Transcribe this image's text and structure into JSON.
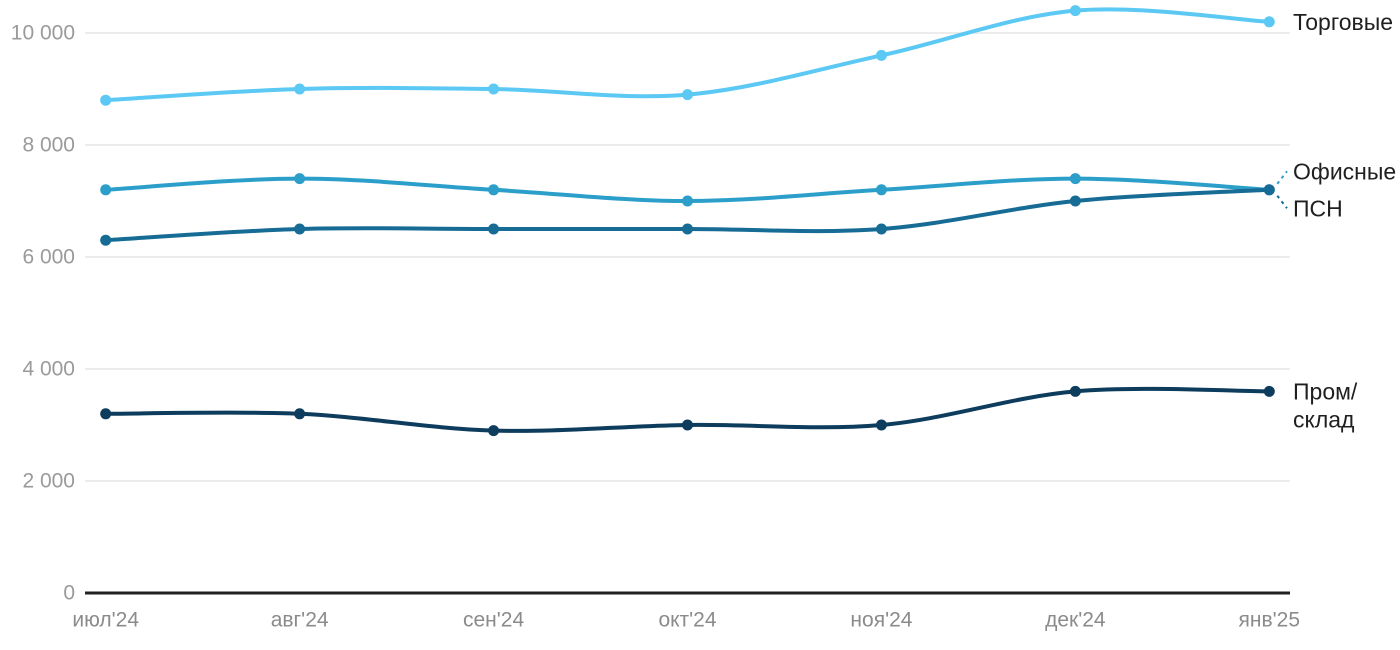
{
  "chart_data": {
    "type": "line",
    "title": "",
    "xlabel": "",
    "ylabel": "",
    "x_categories": [
      "июл'24",
      "авг'24",
      "сен'24",
      "окт'24",
      "ноя'24",
      "дек'24",
      "янв'25"
    ],
    "ylim": [
      0,
      10000
    ],
    "yticks": [
      {
        "value": 0,
        "label": "0"
      },
      {
        "value": 2000,
        "label": "2 000"
      },
      {
        "value": 4000,
        "label": "4 000"
      },
      {
        "value": 6000,
        "label": "6 000"
      },
      {
        "value": 8000,
        "label": "8 000"
      },
      {
        "value": 10000,
        "label": "10 000"
      }
    ],
    "grid": "horizontal",
    "legend_position": "right-end-labels",
    "series": [
      {
        "name": "Торговые",
        "label_lines": [
          "Торговые"
        ],
        "color": "#5bc9f3",
        "values": [
          8800,
          9000,
          9000,
          8900,
          9600,
          10400,
          10200
        ]
      },
      {
        "name": "Офисные",
        "label_lines": [
          "Офисные"
        ],
        "color": "#2b9fca",
        "values": [
          7200,
          7400,
          7200,
          7000,
          7200,
          7400,
          7200
        ]
      },
      {
        "name": "ПСН",
        "label_lines": [
          "ПСН"
        ],
        "color": "#166c95",
        "values": [
          6300,
          6500,
          6500,
          6500,
          6500,
          7000,
          7200
        ]
      },
      {
        "name": "Пром/склад",
        "label_lines": [
          "Пром/",
          "склад"
        ],
        "color": "#0d3c5d",
        "values": [
          3200,
          3200,
          2900,
          3000,
          3000,
          3600,
          3600
        ]
      }
    ],
    "colors": {
      "background": "#ffffff",
      "gridline": "#e6e6e6",
      "axis_line": "#202020",
      "ytick_text": "#9a9a9a",
      "xtick_text": "#8b8b8b",
      "end_label_text": "#1f1f1f"
    }
  }
}
